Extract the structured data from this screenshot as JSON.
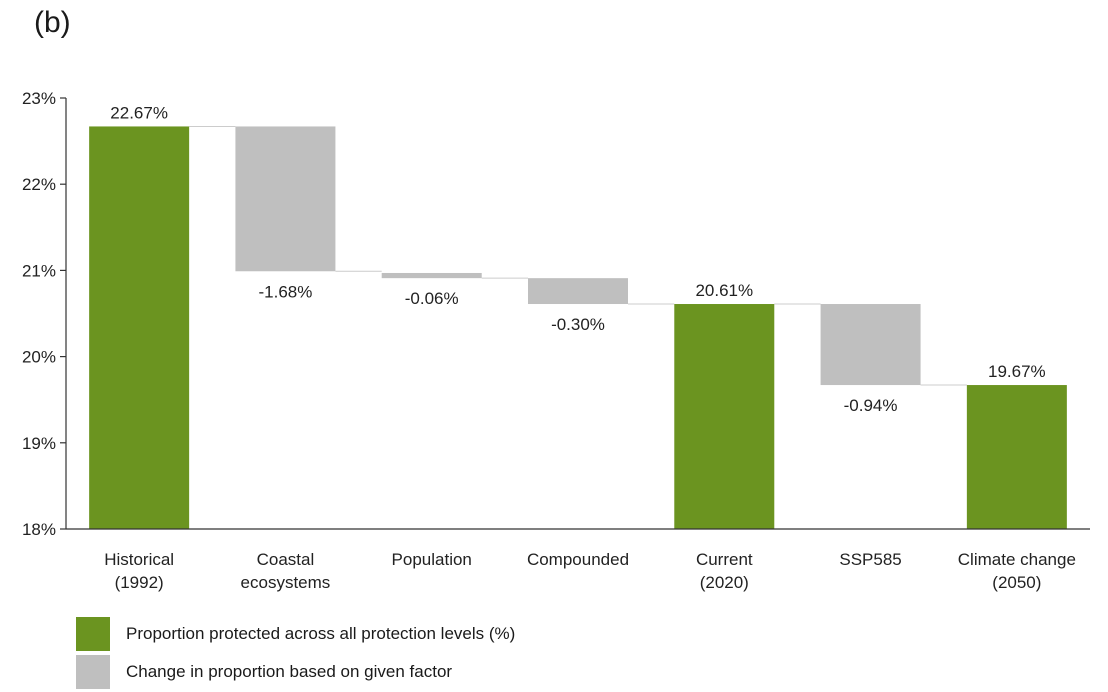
{
  "panel_label": "(b)",
  "colors": {
    "total": "#6b9420",
    "change": "#bfbfbf",
    "axis": "#333333",
    "connector": "#cccccc"
  },
  "chart_data": {
    "type": "bar",
    "subtype": "waterfall",
    "ylim": [
      18,
      23
    ],
    "yticks": [
      {
        "value": 18,
        "label": "18%"
      },
      {
        "value": 19,
        "label": "19%"
      },
      {
        "value": 20,
        "label": "20%"
      },
      {
        "value": 21,
        "label": "21%"
      },
      {
        "value": 22,
        "label": "22%"
      },
      {
        "value": 23,
        "label": "23%"
      }
    ],
    "bars": [
      {
        "category": [
          "Historical",
          "(1992)"
        ],
        "kind": "total",
        "start": 18,
        "end": 22.67,
        "label": "22.67%"
      },
      {
        "category": [
          "Coastal",
          "ecosystems"
        ],
        "kind": "change",
        "start": 22.67,
        "end": 20.99,
        "label": "-1.68%"
      },
      {
        "category": [
          "Population"
        ],
        "kind": "change",
        "start": 20.97,
        "end": 20.91,
        "label": "-0.06%"
      },
      {
        "category": [
          "Compounded"
        ],
        "kind": "change",
        "start": 20.91,
        "end": 20.61,
        "label": "-0.30%"
      },
      {
        "category": [
          "Current",
          "(2020)"
        ],
        "kind": "total",
        "start": 18,
        "end": 20.61,
        "label": "20.61%"
      },
      {
        "category": [
          "SSP585"
        ],
        "kind": "change",
        "start": 20.61,
        "end": 19.67,
        "label": "-0.94%"
      },
      {
        "category": [
          "Climate change",
          "(2050)"
        ],
        "kind": "total",
        "start": 18,
        "end": 19.67,
        "label": "19.67%"
      }
    ],
    "legend": [
      {
        "kind": "total",
        "label": "Proportion protected across all protection levels (%)"
      },
      {
        "kind": "change",
        "label": "Change in proportion based on given factor"
      }
    ],
    "legend_position": "bottom-left",
    "grid": false
  }
}
